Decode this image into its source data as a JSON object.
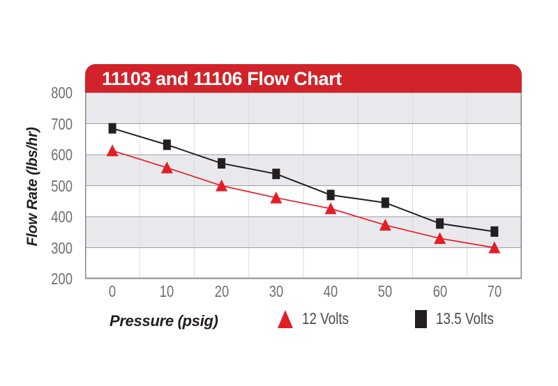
{
  "title": "11103 and 11106 Flow Chart",
  "chart_data": {
    "type": "line",
    "x": [
      0,
      10,
      20,
      30,
      40,
      50,
      60,
      70
    ],
    "xticks": [
      0,
      10,
      20,
      30,
      40,
      50,
      60,
      70
    ],
    "yticks": [
      800,
      700,
      600,
      500,
      400,
      300,
      200
    ],
    "xlabel": "Pressure (psig)",
    "ylabel": "Flow Rate (lbs/hr)",
    "ylim": [
      200,
      800
    ],
    "ytick_step": 100,
    "grid": "horizontal gridlines every 100 with alternating gray bands; vertical separators between categories",
    "legend_position": "bottom",
    "series": [
      {
        "name": "12 Volts",
        "marker": "triangle",
        "color": "#e31e26",
        "values": [
          613,
          558,
          500,
          461,
          426,
          373,
          330,
          300
        ]
      },
      {
        "name": "13.5 Volts",
        "marker": "square",
        "color": "#231f20",
        "values": [
          685,
          632,
          572,
          538,
          470,
          445,
          378,
          352
        ]
      }
    ]
  },
  "colors": {
    "banner": "#d2232a",
    "banner_text": "#ffffff",
    "band": "#e9e9ed",
    "h_gridline": "#9c9ca0",
    "v_gridline": "#d9d9de",
    "plot_border": "#87878b",
    "tick_label": "#6d6e71",
    "axis_title": "#231f20",
    "legend_text": "#4a4a4c",
    "background": "#ffffff"
  }
}
